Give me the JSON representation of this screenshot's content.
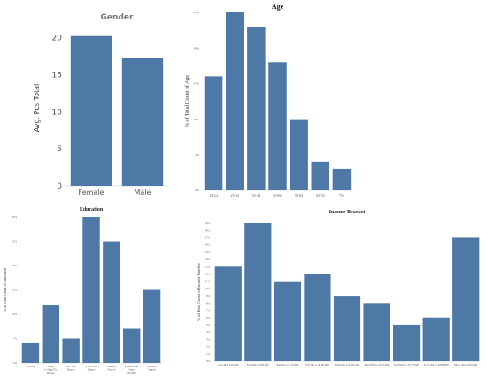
{
  "colors": {
    "bar": "#4e79a7",
    "axis": "#d9d9d9",
    "text": "#555555",
    "title_gray": "#777777"
  },
  "chart_data": [
    {
      "id": "gender",
      "type": "bar",
      "title": "Gender",
      "xlabel": "",
      "ylabel": "Avg. Pcs Total",
      "categories": [
        "Female",
        "Male"
      ],
      "values": [
        20.2,
        17.2
      ],
      "ylim": [
        0,
        21
      ],
      "yticks": [
        0,
        5,
        10,
        15,
        20
      ],
      "grid": false
    },
    {
      "id": "age",
      "type": "bar",
      "title": "Age",
      "xlabel": "",
      "ylabel": "% of Total Count of Age",
      "categories": [
        "18-24",
        "25-34",
        "35-44",
        "45-054",
        "55-64",
        "65-74",
        "75+"
      ],
      "values": [
        16,
        25,
        23,
        18,
        10,
        4,
        3
      ],
      "ylim": [
        0,
        25
      ],
      "yticks": [
        0,
        5,
        10,
        15,
        20,
        25
      ],
      "ytick_labels": [
        "0%",
        "5%",
        "10%",
        "15%",
        "20%",
        "25%"
      ],
      "grid": false
    },
    {
      "id": "education",
      "type": "bar",
      "title": "Education",
      "xlabel": "",
      "ylabel": "% of Total Count of Education",
      "categories": [
        "HS/GED",
        "Some College/No Degree",
        "Two Year Degree",
        "Four Year Degree",
        "Master's Degree",
        "Professional Degree (JD/MD)",
        "Doctoral Degree"
      ],
      "values": [
        4,
        12,
        5,
        30,
        25,
        7,
        15
      ],
      "ylim": [
        0,
        30
      ],
      "yticks": [
        0,
        5,
        10,
        15,
        20,
        25,
        30
      ],
      "ytick_labels": [
        "0%",
        "5%",
        "10%",
        "15%",
        "20%",
        "25%",
        "30%"
      ],
      "grid": false
    },
    {
      "id": "income",
      "type": "bar",
      "title": "Income Bracket",
      "xlabel": "",
      "ylabel": "% of Total Count of Income Bracket",
      "categories": [
        "Less than $10,000",
        "$10,000 to $50,000",
        "$50,001 to $75,000",
        "$75,001 to $100,000",
        "$100,001 to $125,000",
        "$125,001 to $150,000",
        "$150,001 to $175,000",
        "$175,001 to $200,000",
        "More than $200,000"
      ],
      "values": [
        13,
        19,
        11,
        12,
        9,
        8,
        5,
        6,
        17
      ],
      "ylim": [
        0,
        19
      ],
      "yticks": [
        0,
        1,
        2,
        3,
        4,
        5,
        6,
        7,
        8,
        9,
        10,
        11,
        12,
        13,
        14,
        15,
        16,
        17,
        18,
        19
      ],
      "ytick_labels": [
        "0%",
        "1%",
        "2%",
        "3%",
        "4%",
        "5%",
        "6%",
        "7%",
        "8%",
        "9%",
        "10%",
        "11%",
        "12%",
        "13%",
        "14%",
        "15%",
        "16%",
        "17%",
        "18%",
        "19%"
      ],
      "grid": false
    }
  ]
}
